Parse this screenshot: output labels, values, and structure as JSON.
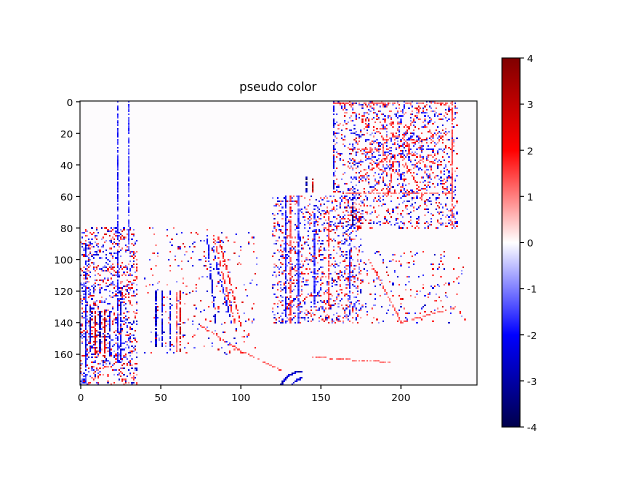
{
  "chart_data": {
    "type": "heatmap",
    "title": "pseudo color",
    "colormap": "seismic",
    "image_size": {
      "cols": 248,
      "rows": 180
    },
    "xlim": [
      -0.5,
      247.5
    ],
    "ylim": [
      179.5,
      -0.5
    ],
    "x_ticks": [
      0,
      50,
      100,
      150,
      200
    ],
    "y_ticks": [
      0,
      20,
      40,
      60,
      80,
      100,
      120,
      140,
      160
    ],
    "colorbar": {
      "vmin": -4,
      "vmax": 4,
      "ticks": [
        -4,
        -3,
        -2,
        -1,
        0,
        1,
        2,
        3,
        4
      ]
    },
    "features": [
      {
        "kind": "vline",
        "x": 3,
        "y0": 90,
        "y1": 178,
        "value": -2.5
      },
      {
        "kind": "vline",
        "x": 6,
        "y0": 130,
        "y1": 160,
        "value": -3.2
      },
      {
        "kind": "vline",
        "x": 9,
        "y0": 133,
        "y1": 160,
        "value": 3.2
      },
      {
        "kind": "vline",
        "x": 12,
        "y0": 133,
        "y1": 160,
        "value": -3.5
      },
      {
        "kind": "vline",
        "x": 15,
        "y0": 133,
        "y1": 162,
        "value": 3.3
      },
      {
        "kind": "vline",
        "x": 18,
        "y0": 133,
        "y1": 162,
        "value": -2.8
      },
      {
        "kind": "vline",
        "x": 23,
        "y0": 0,
        "y1": 165,
        "value": -2.2
      },
      {
        "kind": "vline",
        "x": 25,
        "y0": 120,
        "y1": 165,
        "value": -3.0
      },
      {
        "kind": "vline",
        "x": 30,
        "y0": 0,
        "y1": 95,
        "value": -1.8
      },
      {
        "kind": "vline",
        "x": 47,
        "y0": 120,
        "y1": 155,
        "value": -3.1
      },
      {
        "kind": "vline",
        "x": 51,
        "y0": 120,
        "y1": 155,
        "value": -2.9
      },
      {
        "kind": "vline",
        "x": 56,
        "y0": 120,
        "y1": 155,
        "value": -3.0
      },
      {
        "kind": "vline",
        "x": 60,
        "y0": 120,
        "y1": 158,
        "value": 1.5
      },
      {
        "kind": "vline",
        "x": 62,
        "y0": 120,
        "y1": 158,
        "value": 3.4
      },
      {
        "kind": "seg",
        "x0": 79,
        "y0": 85,
        "x1": 84,
        "y1": 140,
        "value": -2.6
      },
      {
        "kind": "seg",
        "x0": 83,
        "y0": 85,
        "x1": 96,
        "y1": 140,
        "value": 1.8
      },
      {
        "kind": "seg",
        "x0": 86,
        "y0": 85,
        "x1": 100,
        "y1": 142,
        "value": 2.4
      },
      {
        "kind": "seg",
        "x0": 82,
        "y0": 92,
        "x1": 94,
        "y1": 140,
        "value": -2.4
      },
      {
        "kind": "vline",
        "x": 128,
        "y0": 60,
        "y1": 140,
        "value": -2.5
      },
      {
        "kind": "vline",
        "x": 131,
        "y0": 60,
        "y1": 140,
        "value": 1.7
      },
      {
        "kind": "vline",
        "x": 136,
        "y0": 60,
        "y1": 140,
        "value": -1.8
      },
      {
        "kind": "vline",
        "x": 141,
        "y0": 48,
        "y1": 57,
        "value": -3.6
      },
      {
        "kind": "vline",
        "x": 145,
        "y0": 48,
        "y1": 57,
        "value": 3.5
      },
      {
        "kind": "vline",
        "x": 146,
        "y0": 68,
        "y1": 130,
        "value": -2.0
      },
      {
        "kind": "vline",
        "x": 155,
        "y0": 70,
        "y1": 130,
        "value": 1.6
      },
      {
        "kind": "vline",
        "x": 170,
        "y0": 58,
        "y1": 78,
        "value": -3.4
      },
      {
        "kind": "vline",
        "x": 168,
        "y0": 80,
        "y1": 135,
        "value": -1.9
      },
      {
        "kind": "vline",
        "x": 158,
        "y0": 0,
        "y1": 55,
        "value": -2.8
      },
      {
        "kind": "hline",
        "y": 1,
        "x0": 158,
        "x1": 232,
        "value": 1.4
      },
      {
        "kind": "vline",
        "x": 232,
        "y0": 0,
        "y1": 80,
        "value": 1.6
      },
      {
        "kind": "hline",
        "y": 58,
        "x0": 165,
        "x1": 232,
        "value": 1.3
      },
      {
        "kind": "arc",
        "cx": 138,
        "cy": 185,
        "r": 14,
        "a0": 180,
        "a1": 270,
        "value": -3.2
      },
      {
        "kind": "arc",
        "cx": 140,
        "cy": 185,
        "r": 10,
        "a0": 180,
        "a1": 260,
        "value": -2.5
      },
      {
        "kind": "seg",
        "x0": 180,
        "y0": 100,
        "x1": 200,
        "y1": 140,
        "value": 1.5
      },
      {
        "kind": "seg",
        "x0": 200,
        "y0": 140,
        "x1": 235,
        "y1": 130,
        "value": 1.4
      },
      {
        "kind": "seg",
        "x0": 145,
        "y0": 162,
        "x1": 195,
        "y1": 165,
        "value": 1.2
      },
      {
        "kind": "seg",
        "x0": 75,
        "y0": 142,
        "x1": 100,
        "y1": 158,
        "value": 1.6
      },
      {
        "kind": "seg",
        "x0": 100,
        "y0": 158,
        "x1": 125,
        "y1": 170,
        "value": 1.4
      }
    ],
    "radial_pattern": {
      "cx": 197,
      "cy": 30,
      "r": 30,
      "spokes": 18,
      "value_pos": 2.0,
      "value_neg": -2.0
    },
    "noise_regions": [
      {
        "x0": 0,
        "x1": 35,
        "y0": 80,
        "y1": 179,
        "density": 0.25
      },
      {
        "x0": 120,
        "x1": 175,
        "y0": 60,
        "y1": 140,
        "density": 0.2
      },
      {
        "x0": 158,
        "x1": 235,
        "y0": 0,
        "y1": 80,
        "density": 0.18
      },
      {
        "x0": 165,
        "x1": 240,
        "y0": 95,
        "y1": 140,
        "density": 0.06
      },
      {
        "x0": 40,
        "x1": 110,
        "y0": 80,
        "y1": 160,
        "density": 0.04
      }
    ]
  }
}
